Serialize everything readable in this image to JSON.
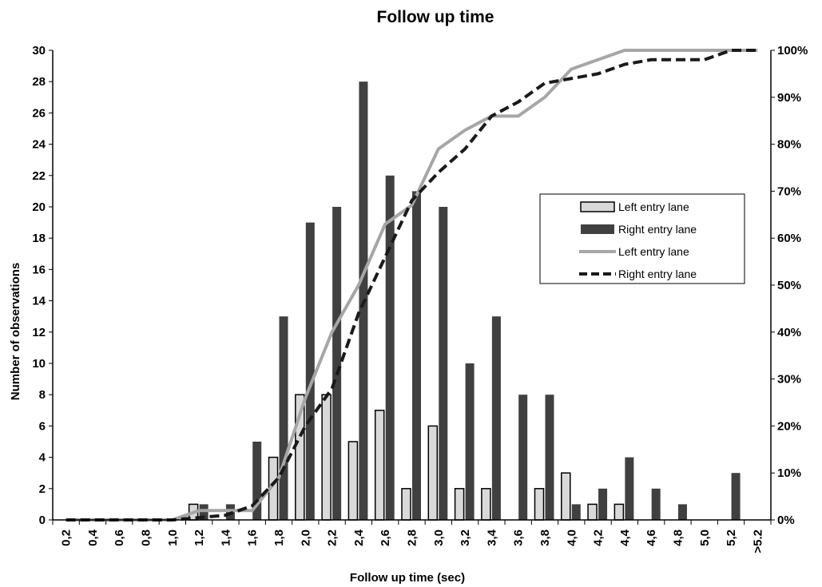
{
  "chart_data": {
    "type": "bar",
    "title": "Follow up time",
    "xlabel": "Follow up time (sec)",
    "ylabel": "Number of observations",
    "categories": [
      "0,2",
      "0,4",
      "0,6",
      "0,8",
      "1,0",
      "1,2",
      "1,4",
      "1,6",
      "1,8",
      "2,0",
      "2,2",
      "2,4",
      "2,6",
      "2,8",
      "3,0",
      "3,2",
      "3,4",
      "3,6",
      "3,8",
      "4,0",
      "4,2",
      "4,4",
      "4,6",
      "4,8",
      "5,0",
      "5,2",
      ">5.2"
    ],
    "ylim": [
      0,
      30
    ],
    "y_ticks": [
      0,
      2,
      4,
      6,
      8,
      10,
      12,
      14,
      16,
      18,
      20,
      22,
      24,
      26,
      28,
      30
    ],
    "y2lim": [
      0,
      100
    ],
    "y2_ticks": [
      "0%",
      "10%",
      "20%",
      "30%",
      "40%",
      "50%",
      "60%",
      "70%",
      "80%",
      "90%",
      "100%"
    ],
    "grid": false,
    "legend_position": "right",
    "series": [
      {
        "name": "Left entry lane",
        "kind": "bar",
        "axis": "left",
        "color": "#d9d9d9",
        "values": [
          0,
          0,
          0,
          0,
          0,
          1,
          0,
          0,
          4,
          8,
          8,
          5,
          7,
          2,
          6,
          2,
          2,
          0,
          2,
          3,
          1,
          1,
          0,
          0,
          0,
          0,
          0
        ]
      },
      {
        "name": "Right entry lane",
        "kind": "bar",
        "axis": "left",
        "color": "#404040",
        "values": [
          0,
          0,
          0,
          0,
          0,
          1,
          1,
          5,
          13,
          19,
          20,
          28,
          22,
          21,
          20,
          10,
          13,
          8,
          8,
          1,
          2,
          4,
          2,
          1,
          0,
          3,
          0
        ]
      },
      {
        "name": "Left entry lane",
        "kind": "line",
        "axis": "right",
        "color": "#a6a6a6",
        "dash": "solid",
        "values": [
          0,
          0,
          0,
          0,
          0,
          2,
          2,
          2,
          9,
          26,
          40,
          50,
          63,
          67,
          79,
          83,
          86,
          86,
          90,
          96,
          98,
          100,
          100,
          100,
          100,
          100,
          100
        ]
      },
      {
        "name": "Right entry lane",
        "kind": "line",
        "axis": "right",
        "color": "#1a1a1a",
        "dash": "dashed",
        "values": [
          0,
          0,
          0,
          0,
          0,
          0.5,
          1,
          3,
          9,
          20,
          28,
          44,
          56,
          68,
          74,
          79,
          86,
          89,
          93,
          94,
          95,
          97,
          98,
          98,
          98,
          100,
          100
        ]
      }
    ]
  }
}
